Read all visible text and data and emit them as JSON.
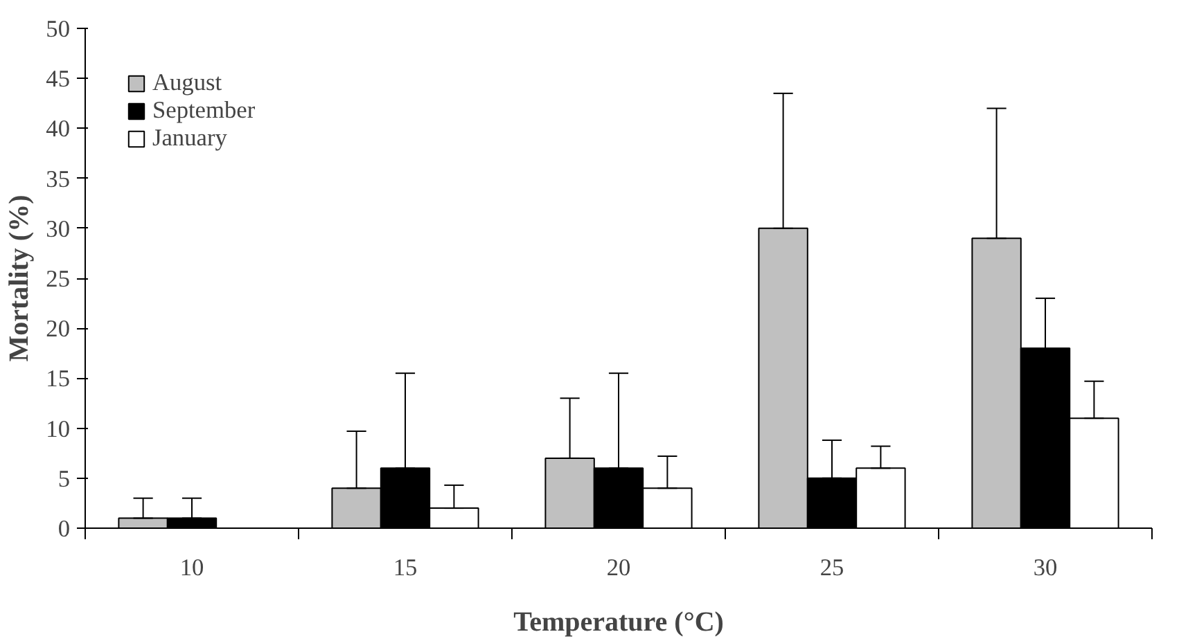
{
  "chart_data": {
    "type": "bar",
    "xlabel": "Temperature (°C)",
    "ylabel": "Mortality (%)",
    "categories": [
      "10",
      "15",
      "20",
      "25",
      "30"
    ],
    "series": [
      {
        "name": "August",
        "color": "#c0c0c0",
        "values": [
          1,
          4,
          7,
          30,
          29
        ],
        "errors": [
          [
            1,
            3
          ],
          [
            4,
            9.7
          ],
          [
            7,
            13
          ],
          [
            30,
            43.5
          ],
          [
            29,
            42
          ]
        ]
      },
      {
        "name": "September",
        "color": "#000000",
        "values": [
          1,
          6,
          6,
          5,
          18
        ],
        "errors": [
          [
            1,
            3
          ],
          [
            6,
            15.5
          ],
          [
            6,
            15.5
          ],
          [
            5,
            8.8
          ],
          [
            18,
            23
          ]
        ]
      },
      {
        "name": "January",
        "color": "#ffffff",
        "values": [
          0,
          2,
          4,
          6,
          11
        ],
        "errors": [
          null,
          [
            2,
            4.3
          ],
          [
            4,
            7.2
          ],
          [
            6,
            8.2
          ],
          [
            11,
            14.7
          ]
        ]
      }
    ],
    "ylim": [
      0,
      50
    ],
    "yticks": [
      0,
      5,
      10,
      15,
      20,
      25,
      30,
      35,
      40,
      45,
      50
    ],
    "grid": false,
    "legend": "top left"
  }
}
